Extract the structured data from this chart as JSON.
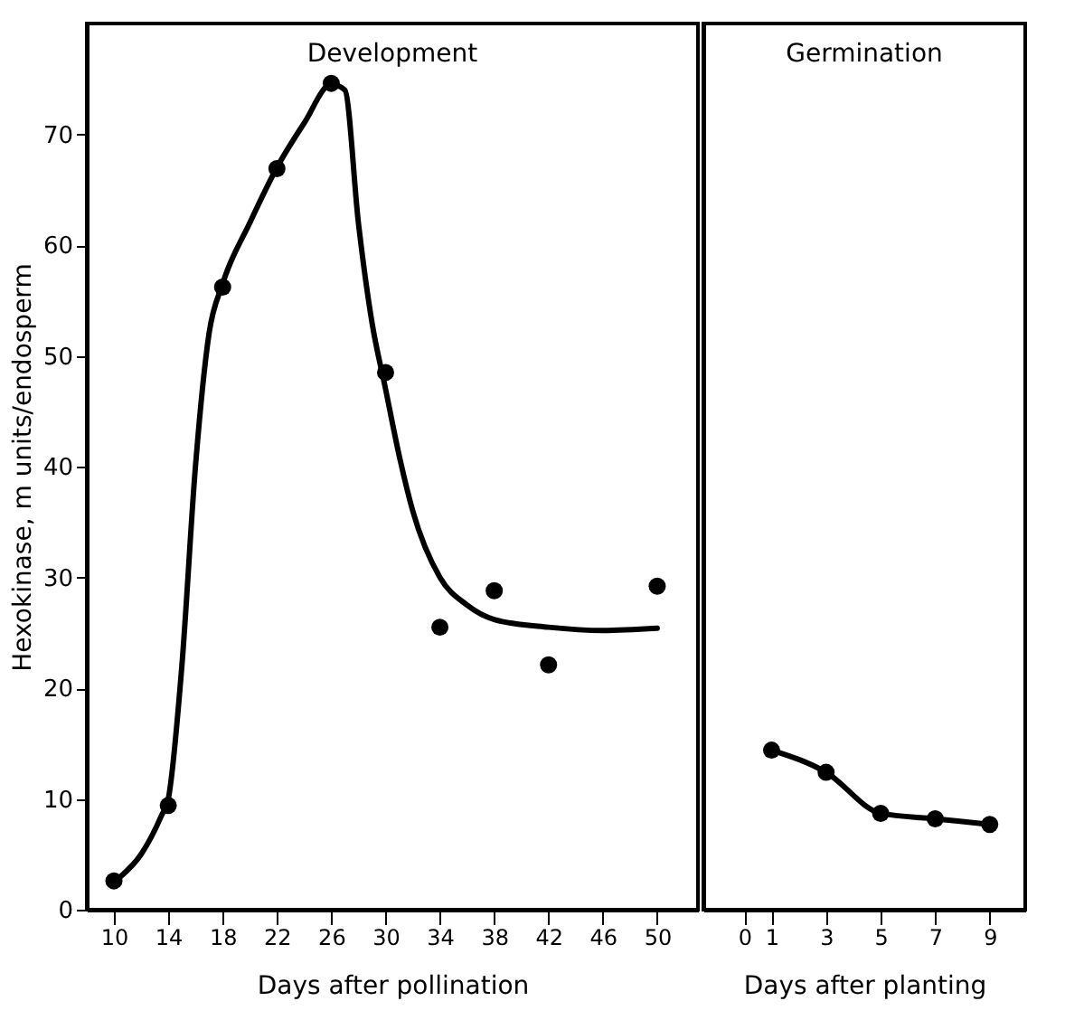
{
  "chart_data": [
    {
      "type": "scatter",
      "title": "Development",
      "xlabel": "Days after pollination",
      "ylabel": "Hexokinase,  m units/endosperm",
      "xlim": [
        8,
        53
      ],
      "xticks": [
        10,
        14,
        18,
        22,
        26,
        30,
        34,
        38,
        42,
        46,
        50
      ],
      "ylim": [
        0,
        80
      ],
      "yticks": [
        0,
        10,
        20,
        30,
        40,
        50,
        60,
        70
      ],
      "series": [
        {
          "color": "#000000",
          "x": [
            10,
            14,
            18,
            22,
            26,
            30,
            34,
            38,
            42,
            50
          ],
          "values": [
            2.6,
            9.4,
            56.2,
            66.9,
            74.6,
            48.5,
            25.5,
            28.8,
            22.1,
            29.2
          ]
        },
        {
          "type": "line",
          "color": "#000000",
          "x": [
            10.5,
            12,
            13.5,
            14,
            15,
            16,
            17,
            18,
            20,
            22,
            24,
            26,
            27,
            28,
            29,
            30,
            31,
            32,
            34,
            36,
            38,
            42,
            46,
            50
          ],
          "values": [
            3,
            5,
            8.5,
            10,
            22,
            40,
            52,
            56.5,
            62,
            67,
            71,
            74.5,
            74,
            62,
            53,
            47,
            41,
            36,
            30,
            27.5,
            26.2,
            25.5,
            25.2,
            25.4
          ]
        }
      ]
    },
    {
      "type": "line",
      "title": "Germination",
      "xlabel": "Days after planting",
      "xlim": [
        -1.5,
        10.3
      ],
      "xticks": [
        0,
        1,
        3,
        5,
        7,
        9
      ],
      "ylim": [
        0,
        80
      ],
      "yticks": [
        0,
        10,
        20,
        30,
        40,
        50,
        60,
        70
      ],
      "tick_labels": "x",
      "marker": "circle",
      "series": [
        {
          "color": "#000000",
          "x": [
            1,
            3,
            5,
            7,
            9
          ],
          "values": [
            14.4,
            12.4,
            8.7,
            8.2,
            7.7
          ]
        }
      ]
    }
  ]
}
